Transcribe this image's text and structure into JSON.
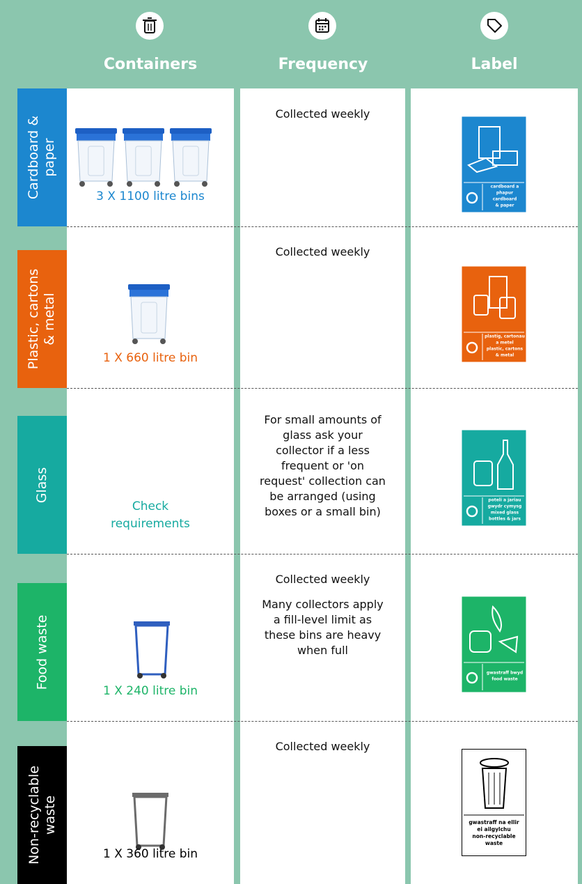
{
  "header": {
    "columns": [
      "Containers",
      "Frequency",
      "Label"
    ]
  },
  "rows": [
    {
      "category": [
        "Cardboard &",
        "paper"
      ],
      "color": "#1c87cf",
      "container": [
        "3 X 1100 litre bins"
      ],
      "frequency": [
        [
          "Collected weekly"
        ]
      ],
      "label": [
        "cardboard a",
        "phapur",
        "cardboard",
        "& paper"
      ]
    },
    {
      "category": [
        "Plastic, cartons",
        "& metal"
      ],
      "color": "#e8620e",
      "container": [
        "1 X 660 litre bin"
      ],
      "frequency": [
        [
          "Collected weekly"
        ]
      ],
      "label": [
        "plastig, cartonau",
        "a metel",
        "plastic, cartons",
        "& metal"
      ]
    },
    {
      "category": [
        "Glass"
      ],
      "color": "#16aaa0",
      "container": [
        "Check",
        "requirements"
      ],
      "frequency": [
        [
          "For small amounts of",
          "glass ask your",
          "collector if a less",
          "frequent or 'on",
          "request' collection can",
          "be arranged (using",
          "boxes or a small bin)"
        ]
      ],
      "label": [
        "poteli a jariau",
        "gwydr cymysg",
        "mixed glass",
        "bottles & jars"
      ]
    },
    {
      "category": [
        "Food waste"
      ],
      "color": "#1db468",
      "container": [
        "1 X 240 litre bin"
      ],
      "frequency": [
        [
          "Collected weekly"
        ],
        [
          "Many collectors apply",
          "a fill-level limit as",
          "these bins are heavy",
          "when full"
        ]
      ],
      "label": [
        "gwastraff bwyd",
        "food waste"
      ]
    },
    {
      "category": [
        "Non-recyclable",
        "waste"
      ],
      "color": "#000000",
      "container": [
        "1 X 360 litre bin"
      ],
      "frequency": [
        [
          "Collected weekly"
        ]
      ],
      "label": [
        "gwastraff na ellir",
        "ei ailgylchu",
        "non-recyclable",
        "waste"
      ]
    }
  ]
}
